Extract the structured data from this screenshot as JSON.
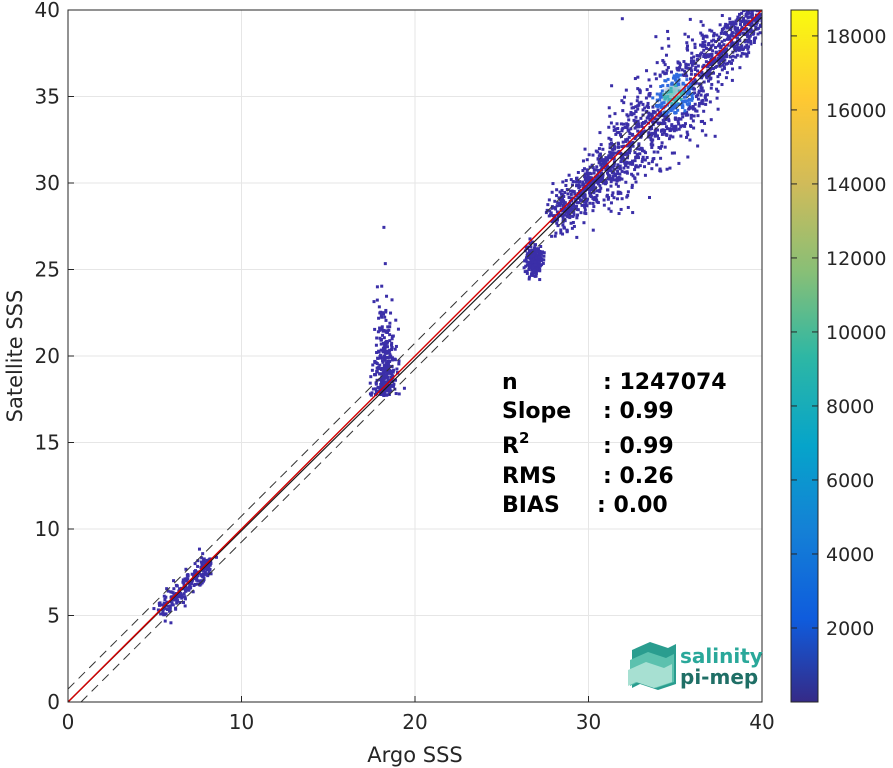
{
  "chart_data": {
    "type": "heatmap",
    "title": "",
    "xlabel": "Argo SSS",
    "ylabel": "Satellite SSS",
    "xlim": [
      0,
      40
    ],
    "ylim": [
      0,
      40
    ],
    "xticks": [
      "0",
      "10",
      "20",
      "30",
      "40"
    ],
    "yticks": [
      "0",
      "5",
      "10",
      "15",
      "20",
      "25",
      "30",
      "35",
      "40"
    ],
    "grid": true,
    "colormap": "parula",
    "colorbar": {
      "range": [
        0,
        18700
      ],
      "ticks": [
        "2000",
        "4000",
        "6000",
        "8000",
        "10000",
        "12000",
        "14000",
        "16000",
        "18000"
      ],
      "tick_values": [
        2000,
        4000,
        6000,
        8000,
        10000,
        12000,
        14000,
        16000,
        18000
      ],
      "colors": [
        "#352a87",
        "#0f5cdd",
        "#1481d6",
        "#06a4ca",
        "#2eb7a4",
        "#87bf77",
        "#d1bb59",
        "#fec832",
        "#f9fb0e"
      ]
    },
    "reference_lines": {
      "identity": {
        "slope": 1,
        "intercept": 0,
        "color": "#d40000"
      },
      "regression": {
        "slope": 0.99,
        "intercept": 0.0,
        "color": "#1a1a1a"
      },
      "envelope_offset": 0.75
    },
    "density_clusters": [
      {
        "x": [
          5.2,
          8.2
        ],
        "y": [
          5.2,
          8.6
        ],
        "level": "low"
      },
      {
        "x": [
          17.6,
          19.2
        ],
        "y": [
          17.2,
          24.5
        ],
        "level": "low"
      },
      {
        "x": [
          26.3,
          27.2
        ],
        "y": [
          24.8,
          26.5
        ],
        "level": "low"
      },
      {
        "x": [
          28,
          40
        ],
        "y": [
          27.5,
          40
        ],
        "level": "high",
        "peak": [
          34.8,
          35.2
        ]
      }
    ],
    "stats": [
      {
        "label": "n",
        "value": ": 1247074"
      },
      {
        "label": "Slope",
        "value": ": 0.99"
      },
      {
        "label": "R",
        "sup": "2",
        "value": ": 0.99"
      },
      {
        "label": "RMS",
        "value": ": 0.26"
      },
      {
        "label": "BIAS",
        "value": ": 0.00"
      }
    ]
  },
  "logo": {
    "line1": "salinity",
    "line2": "pi-mep"
  }
}
